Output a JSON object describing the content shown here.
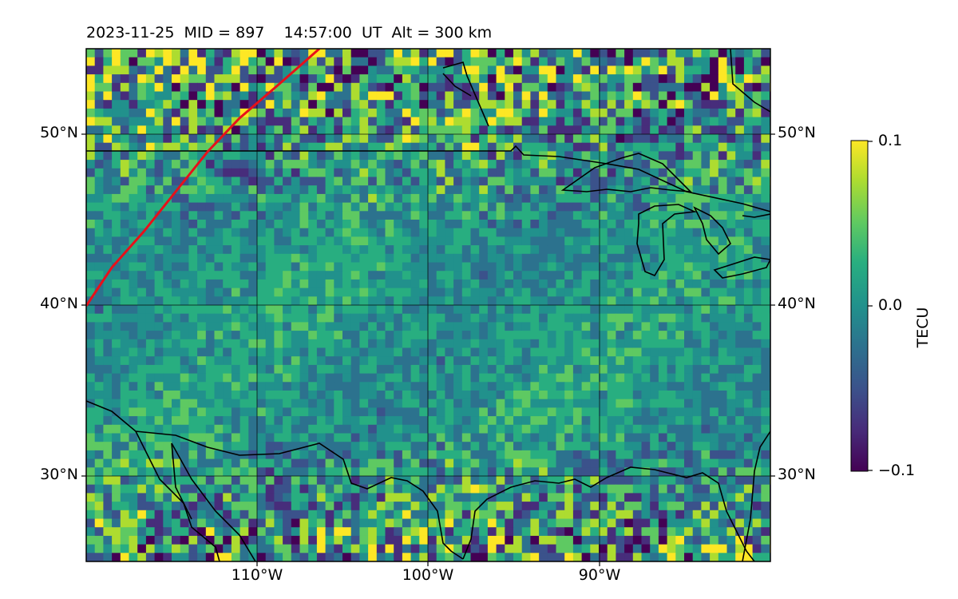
{
  "title": "2023-11-25  MID = 897    14:57:00  UT  Alt = 300 km",
  "map": {
    "lat_range": [
      25,
      55
    ],
    "lon_range": [
      -120,
      -80
    ],
    "lat_ticks": [
      {
        "value": 50,
        "label": "50°N"
      },
      {
        "value": 40,
        "label": "40°N"
      },
      {
        "value": 30,
        "label": "30°N"
      }
    ],
    "lon_ticks": [
      {
        "value": -110,
        "label": "110°W"
      },
      {
        "value": -100,
        "label": "100°W"
      },
      {
        "value": -90,
        "label": "90°W"
      }
    ],
    "path_color": "#e8101a",
    "coast_color": "#000000"
  },
  "colorbar": {
    "label": "TECU",
    "ticks": [
      {
        "value": 0.1,
        "label": "0.1"
      },
      {
        "value": 0.0,
        "label": "0.0"
      },
      {
        "value": -0.1,
        "label": "−0.1"
      }
    ],
    "min": -0.1,
    "max": 0.1,
    "colormap": "viridis"
  }
}
